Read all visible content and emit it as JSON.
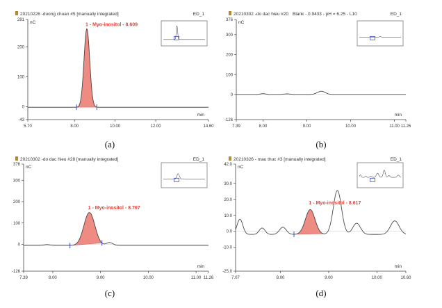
{
  "chart_data": [
    {
      "type": "line",
      "caption": "(a)",
      "header": {
        "title": "20210226 -duong chuan #5 [manually integrated]",
        "trace": "ED_1"
      },
      "unit": "nC",
      "xunit": "min",
      "xlim": [
        5.7,
        14.6
      ],
      "ylim": [
        -43,
        291
      ],
      "x_ticks": [
        "5.70",
        "8.00",
        "10.00",
        "12.00",
        "14.60"
      ],
      "x_tick_values": [
        5.7,
        8.0,
        10.0,
        12.0,
        14.6
      ],
      "y_ticks": [
        "291",
        "200",
        "100",
        "0",
        "-43"
      ],
      "y_tick_values": [
        291,
        200,
        100,
        0,
        -43
      ],
      "series": [
        {
          "baseline": -2,
          "start": 5.7,
          "end": 14.6,
          "peaks": [
            [
              8.609,
              262,
              0.14
            ]
          ]
        }
      ],
      "fill": {
        "from": 8.1,
        "to": 9.1
      },
      "markers": [
        8.1,
        9.1
      ],
      "annotation": {
        "text": "1 - Myo-inositol - 8.609",
        "x": 8.609,
        "y": 262
      }
    },
    {
      "type": "line",
      "caption": "(b)",
      "header": {
        "title": "20210302 -do dac hieu #20",
        "extra": "Blank - 0.9433 - pH = 6.25 - L10",
        "trace": "ED_1"
      },
      "unit": "nC",
      "xunit": "min",
      "xlim": [
        7.39,
        11.26
      ],
      "ylim": [
        -126,
        376
      ],
      "x_ticks": [
        "7.39",
        "8.00",
        "9.00",
        "10.00",
        "11.00",
        "11.26"
      ],
      "x_tick_values": [
        7.39,
        8.0,
        9.0,
        10.0,
        11.0,
        11.26
      ],
      "y_ticks": [
        "376",
        "300",
        "200",
        "100",
        "0",
        "-126"
      ],
      "y_tick_values": [
        376,
        300,
        200,
        100,
        0,
        -126
      ],
      "series": [
        {
          "baseline": 0,
          "start": 7.39,
          "end": 11.26,
          "peaks": [
            [
              8.0,
              4,
              0.06
            ],
            [
              8.55,
              3,
              0.07
            ],
            [
              9.33,
              16,
              0.09
            ]
          ]
        }
      ]
    },
    {
      "type": "line",
      "caption": "(c)",
      "header": {
        "title": "20210302 -do dac hieu #28 [manually integrated]",
        "trace": "ED_1"
      },
      "unit": "nC",
      "xunit": "min",
      "xlim": [
        7.39,
        11.26
      ],
      "ylim": [
        -126,
        376
      ],
      "x_ticks": [
        "7.39",
        "8.00",
        "9.00",
        "10.00",
        "11.00",
        "11.26"
      ],
      "x_tick_values": [
        7.39,
        8.0,
        9.0,
        10.0,
        11.0,
        11.26
      ],
      "y_ticks": [
        "376",
        "300",
        "200",
        "100",
        "0",
        "-126"
      ],
      "y_tick_values": [
        376,
        300,
        200,
        100,
        0,
        -126
      ],
      "series": [
        {
          "baseline": -6,
          "start": 7.39,
          "end": 11.26,
          "peaks": [
            [
              7.88,
              4,
              0.07
            ],
            [
              8.767,
              155,
              0.115
            ],
            [
              9.19,
              14,
              0.07
            ]
          ]
        }
      ],
      "fill": {
        "from": 8.36,
        "to": 9.03
      },
      "markers": [
        8.36,
        9.03
      ],
      "annotation": {
        "text": "1 - Myo-inositol - 8.767",
        "x": 8.767,
        "y": 155
      }
    },
    {
      "type": "line",
      "caption": "(d)",
      "header": {
        "title": "20210326 - mau thuc #3 [manually integrated]",
        "trace": "ED_1"
      },
      "unit": "nC",
      "xunit": "min",
      "xlim": [
        7.07,
        10.6
      ],
      "ylim": [
        -25.0,
        42.0
      ],
      "x_ticks": [
        "7.07",
        "8.00",
        "9.00",
        "10.00",
        "10.60"
      ],
      "x_tick_values": [
        7.07,
        8.0,
        9.0,
        10.0,
        10.6
      ],
      "y_ticks": [
        "42.0",
        "30.0",
        "20.0",
        "10.0",
        "0.0",
        "-10.0",
        "-25.0"
      ],
      "y_tick_values": [
        42.0,
        30.0,
        20.0,
        10.0,
        0.0,
        -10.0,
        -25.0
      ],
      "series": [
        {
          "baseline": -2,
          "start": 7.07,
          "end": 10.6,
          "peaks": [
            [
              7.16,
              9.5,
              0.06
            ],
            [
              7.62,
              4,
              0.06
            ],
            [
              8.05,
              4.5,
              0.07
            ],
            [
              8.617,
              15.5,
              0.1
            ],
            [
              9.18,
              27.5,
              0.085
            ],
            [
              9.58,
              7,
              0.08
            ],
            [
              10.37,
              8.5,
              0.09
            ]
          ]
        }
      ],
      "fill": {
        "from": 8.28,
        "to": 8.92
      },
      "markers": [
        8.28
      ],
      "annotation": {
        "text": "1 - Myo-inositol - 8.617",
        "x": 8.617,
        "y": 15.5
      }
    }
  ]
}
